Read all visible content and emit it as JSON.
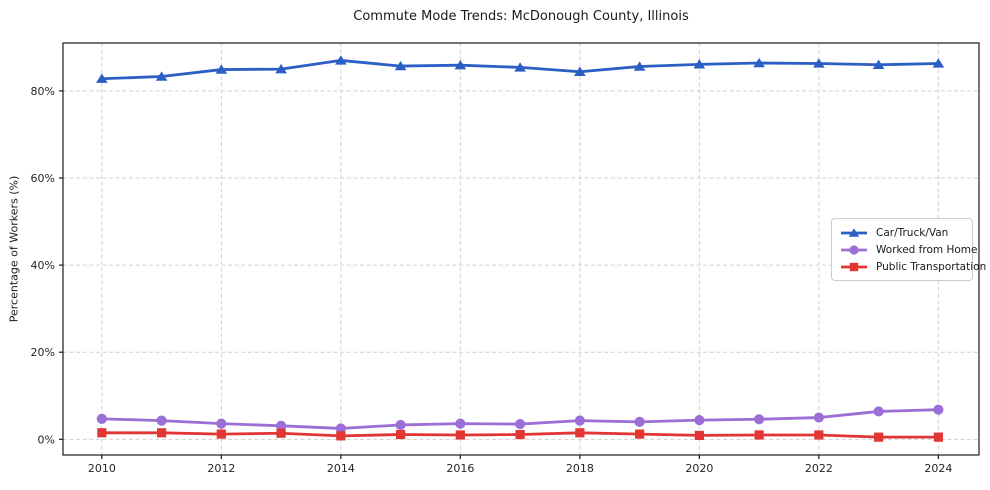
{
  "chart_data": {
    "type": "line",
    "title": "Commute Mode Trends: McDonough County, Illinois",
    "xlabel": "",
    "ylabel": "Percentage of Workers (%)",
    "x": [
      2010,
      2011,
      2012,
      2013,
      2014,
      2015,
      2016,
      2017,
      2018,
      2019,
      2020,
      2021,
      2022,
      2023,
      2024
    ],
    "xticks": [
      2010,
      2012,
      2014,
      2016,
      2018,
      2020,
      2022,
      2024
    ],
    "yticks": [
      0,
      20,
      40,
      60,
      80
    ],
    "ytick_suffix": "%",
    "xlim": [
      2009.35,
      2024.68
    ],
    "ylim": [
      -3.6,
      91.0
    ],
    "grid": true,
    "grid_style": "dashed",
    "grid_color": "#cccccc",
    "axis_color": "#1a1a1a",
    "tick_label_color": "#262626",
    "legend_position": "center-right",
    "series": [
      {
        "name": "Car/Truck/Van",
        "color": "#2c5fc5",
        "marker": "triangle",
        "values": [
          82.8,
          83.3,
          84.9,
          85.0,
          87.0,
          85.7,
          85.9,
          85.4,
          84.4,
          85.6,
          86.1,
          86.4,
          86.3,
          86.0,
          86.3
        ]
      },
      {
        "name": "Worked from Home",
        "color": "#9b6fd6",
        "marker": "circle",
        "values": [
          4.7,
          4.3,
          3.6,
          3.1,
          2.5,
          3.3,
          3.6,
          3.5,
          4.3,
          4.0,
          4.4,
          4.6,
          5.0,
          6.4,
          6.8
        ]
      },
      {
        "name": "Public Transportation",
        "color": "#e23634",
        "marker": "square",
        "values": [
          1.5,
          1.5,
          1.2,
          1.4,
          0.8,
          1.1,
          1.0,
          1.1,
          1.5,
          1.2,
          0.9,
          1.0,
          1.0,
          0.5,
          0.5
        ]
      }
    ]
  }
}
